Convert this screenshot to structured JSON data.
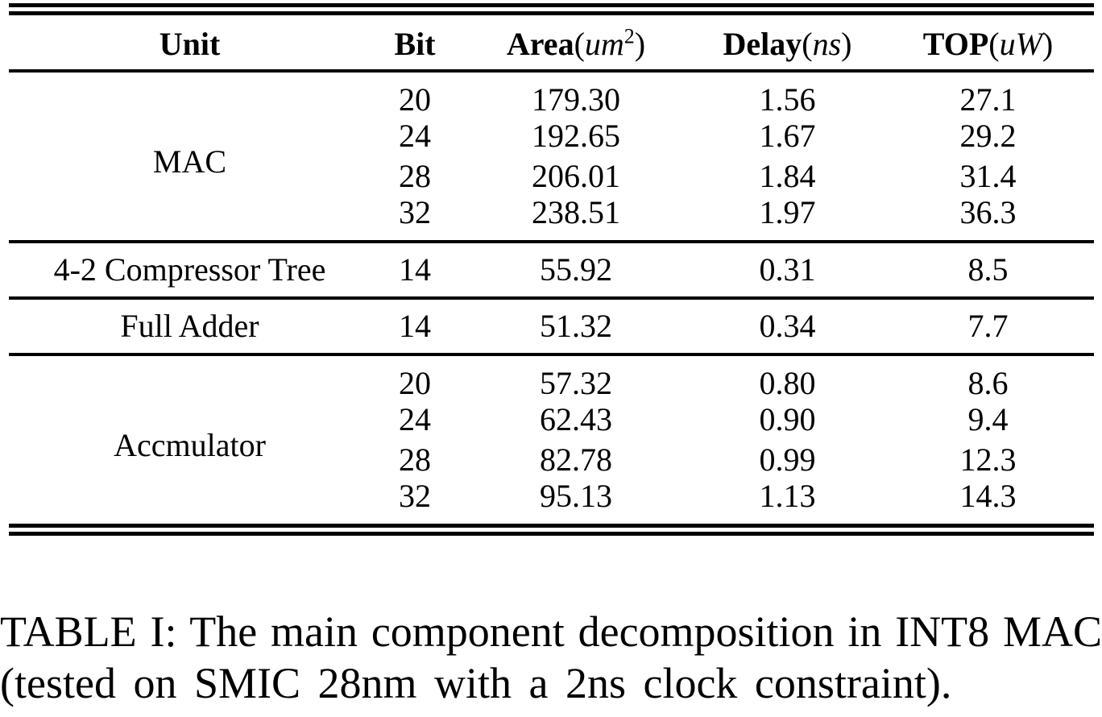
{
  "page": {
    "background": "#ffffff",
    "text_color": "#000000"
  },
  "table": {
    "headers": {
      "unit": "Unit",
      "bit": "Bit",
      "area": {
        "label": "Area",
        "open": "(",
        "var": "um",
        "sup": "2",
        "close": ")"
      },
      "delay": {
        "label": "Delay",
        "open": "(",
        "var": "ns",
        "close": ")"
      },
      "top": {
        "label": "TOP",
        "open": "(",
        "var": "uW",
        "close": ")"
      }
    },
    "sections": [
      {
        "unit": "MAC",
        "rows": [
          {
            "bit": "20",
            "area": "179.30",
            "delay": "1.56",
            "top": "27.1"
          },
          {
            "bit": "24",
            "area": "192.65",
            "delay": "1.67",
            "top": "29.2"
          },
          {
            "bit": "28",
            "area": "206.01",
            "delay": "1.84",
            "top": "31.4"
          },
          {
            "bit": "32",
            "area": "238.51",
            "delay": "1.97",
            "top": "36.3"
          }
        ]
      },
      {
        "unit": "4-2 Compressor Tree",
        "rows": [
          {
            "bit": "14",
            "area": "55.92",
            "delay": "0.31",
            "top": "8.5"
          }
        ]
      },
      {
        "unit": "Full Adder",
        "rows": [
          {
            "bit": "14",
            "area": "51.32",
            "delay": "0.34",
            "top": "7.7"
          }
        ]
      },
      {
        "unit": "Accmulator",
        "rows": [
          {
            "bit": "20",
            "area": "57.32",
            "delay": "0.80",
            "top": "8.6"
          },
          {
            "bit": "24",
            "area": "62.43",
            "delay": "0.90",
            "top": "9.4"
          },
          {
            "bit": "28",
            "area": "82.78",
            "delay": "0.99",
            "top": "12.3"
          },
          {
            "bit": "32",
            "area": "95.13",
            "delay": "1.13",
            "top": "14.3"
          }
        ]
      }
    ]
  },
  "caption": {
    "line1": "TABLE I: The main component decomposition in INT8 MAC",
    "line2": "(tested on SMIC 28nm with a 2ns clock constraint)."
  }
}
